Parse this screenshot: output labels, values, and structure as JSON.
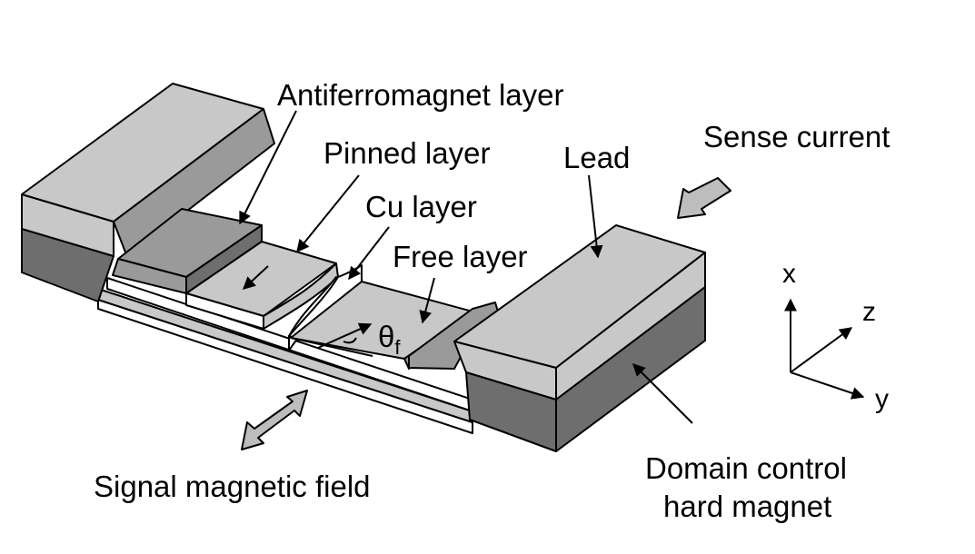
{
  "labels": {
    "antiferromagnet": "Antiferromagnet layer",
    "pinned": "Pinned layer",
    "cu": "Cu layer",
    "free": "Free layer",
    "lead": "Lead",
    "sense_current": "Sense current",
    "signal_field": "Signal magnetic field",
    "domain_control_line1": "Domain control",
    "domain_control_line2": "hard magnet",
    "theta": "θ",
    "theta_sub": "f"
  },
  "axes": {
    "x": "x",
    "y": "y",
    "z": "z"
  },
  "colors": {
    "light_gray": "#c8c8c8",
    "mid_gray": "#9a9a9a",
    "dark_gray": "#6e6e6e",
    "arrow_fill": "#bdbdbd"
  }
}
